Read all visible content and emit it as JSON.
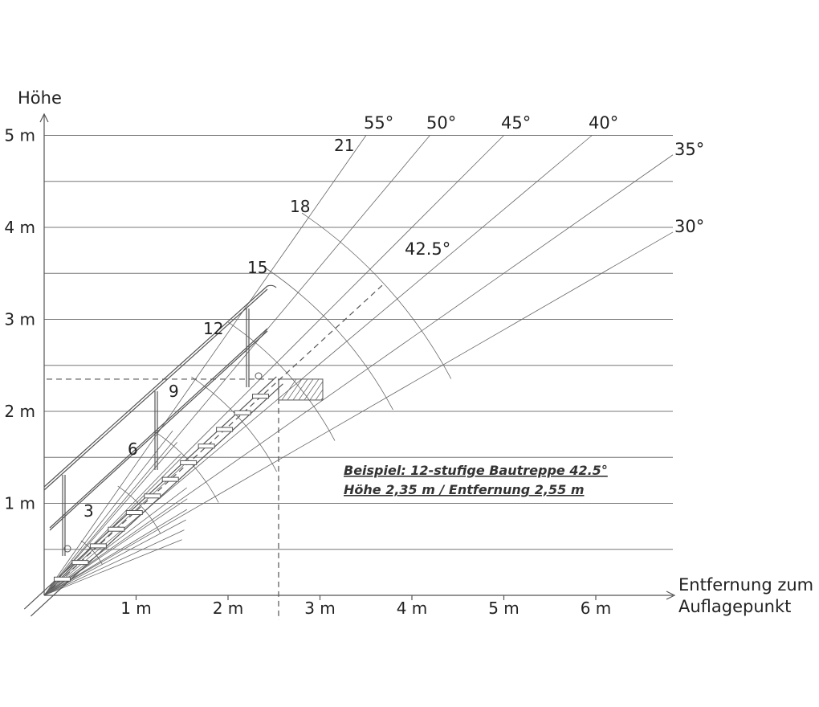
{
  "y_axis_title": "Höhe",
  "x_axis_title_line1": "Entfernung zum",
  "x_axis_title_line2": "Auflagepunkt",
  "y_ticks": [
    "1 m",
    "2 m",
    "3 m",
    "4 m",
    "5 m"
  ],
  "x_ticks": [
    "1 m",
    "2 m",
    "3 m",
    "4 m",
    "5 m",
    "6 m"
  ],
  "angles": [
    {
      "label": "30°",
      "deg": 30
    },
    {
      "label": "35°",
      "deg": 35
    },
    {
      "label": "40°",
      "deg": 40
    },
    {
      "label": "45°",
      "deg": 45
    },
    {
      "label": "50°",
      "deg": 50
    },
    {
      "label": "55°",
      "deg": 55
    }
  ],
  "highlight_angle": {
    "label": "42.5°",
    "deg": 42.5
  },
  "step_labels": [
    "3",
    "6",
    "9",
    "12",
    "15",
    "18",
    "21"
  ],
  "example_line1": "Beispiel: 12-stufige Bautreppe 42.5°",
  "example_line2": "Höhe 2,35 m / Entfernung 2,55 m",
  "example_height_m": 2.35,
  "example_distance_m": 2.55,
  "colors": {
    "grid": "#777777",
    "highlight": "#888888",
    "text": "#222222"
  }
}
